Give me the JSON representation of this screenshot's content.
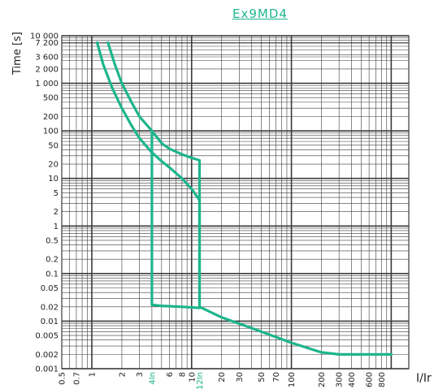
{
  "chart_data": {
    "type": "line",
    "title": "Ex9MD4",
    "xlabel": "I/Ir",
    "ylabel": "Time [s]",
    "xscale": "log",
    "yscale": "log",
    "xlim": [
      0.5,
      1500
    ],
    "ylim": [
      0.001,
      10000
    ],
    "grid": true,
    "colors": {
      "curve": "#1db58c",
      "grid": "#3a3a3a",
      "highlight_tick": "#1db58c"
    },
    "x_ticks": [
      {
        "v": 0.5,
        "label": "0.5",
        "hl": false
      },
      {
        "v": 0.7,
        "label": "0.7",
        "hl": false
      },
      {
        "v": 1,
        "label": "1",
        "hl": false
      },
      {
        "v": 2,
        "label": "2",
        "hl": false
      },
      {
        "v": 3,
        "label": "3",
        "hl": false
      },
      {
        "v": 4,
        "label": "4In",
        "hl": true
      },
      {
        "v": 6,
        "label": "6",
        "hl": false
      },
      {
        "v": 8,
        "label": "8",
        "hl": false
      },
      {
        "v": 10,
        "label": "10",
        "hl": false
      },
      {
        "v": 12,
        "label": "12In",
        "hl": true
      },
      {
        "v": 20,
        "label": "20",
        "hl": false
      },
      {
        "v": 30,
        "label": "30",
        "hl": false
      },
      {
        "v": 50,
        "label": "50",
        "hl": false
      },
      {
        "v": 70,
        "label": "70",
        "hl": false
      },
      {
        "v": 100,
        "label": "100",
        "hl": false
      },
      {
        "v": 200,
        "label": "200",
        "hl": false
      },
      {
        "v": 300,
        "label": "300",
        "hl": false
      },
      {
        "v": 400,
        "label": "400",
        "hl": false
      },
      {
        "v": 600,
        "label": "600",
        "hl": false
      },
      {
        "v": 800,
        "label": "800",
        "hl": false
      }
    ],
    "y_ticks": [
      {
        "v": 10000,
        "label": "10 000"
      },
      {
        "v": 7200,
        "label": "7 200"
      },
      {
        "v": 3600,
        "label": "3 600"
      },
      {
        "v": 2000,
        "label": "2 000"
      },
      {
        "v": 1000,
        "label": "1 000"
      },
      {
        "v": 500,
        "label": "500"
      },
      {
        "v": 200,
        "label": "200"
      },
      {
        "v": 100,
        "label": "100"
      },
      {
        "v": 50,
        "label": "50"
      },
      {
        "v": 20,
        "label": "20"
      },
      {
        "v": 10,
        "label": "10"
      },
      {
        "v": 5,
        "label": "5"
      },
      {
        "v": 2,
        "label": "2"
      },
      {
        "v": 1,
        "label": "1"
      },
      {
        "v": 0.5,
        "label": "0.5"
      },
      {
        "v": 0.2,
        "label": "0.2"
      },
      {
        "v": 0.1,
        "label": "0.1"
      },
      {
        "v": 0.05,
        "label": "0.05"
      },
      {
        "v": 0.02,
        "label": "0.02"
      },
      {
        "v": 0.01,
        "label": "0.01"
      },
      {
        "v": 0.005,
        "label": "0.005"
      },
      {
        "v": 0.002,
        "label": "0.002"
      },
      {
        "v": 0.001,
        "label": "0.001"
      }
    ],
    "series": [
      {
        "points": [
          [
            1.13,
            7200
          ],
          [
            1.3,
            2500
          ],
          [
            1.6,
            800
          ],
          [
            2.0,
            300
          ],
          [
            2.5,
            130
          ],
          [
            3.0,
            70
          ],
          [
            4.0,
            35
          ],
          [
            5.0,
            23
          ],
          [
            6.0,
            17
          ],
          [
            8.0,
            10
          ],
          [
            10.0,
            6
          ],
          [
            12.0,
            3.5
          ],
          [
            12.0,
            0.02
          ],
          [
            20,
            0.012
          ],
          [
            50,
            0.006
          ],
          [
            100,
            0.0035
          ],
          [
            200,
            0.0022
          ],
          [
            300,
            0.002
          ],
          [
            1000,
            0.002
          ]
        ]
      },
      {
        "points": [
          [
            1.45,
            7200
          ],
          [
            1.7,
            2500
          ],
          [
            2.0,
            1000
          ],
          [
            2.5,
            400
          ],
          [
            3.0,
            200
          ],
          [
            4.0,
            100
          ],
          [
            5.0,
            55
          ],
          [
            6.0,
            42
          ],
          [
            8.0,
            32
          ],
          [
            10.0,
            27
          ],
          [
            12.0,
            24
          ],
          [
            12.0,
            0.02
          ]
        ]
      },
      {
        "points": [
          [
            4.0,
            100
          ],
          [
            4.0,
            0.022
          ],
          [
            5.0,
            0.021
          ],
          [
            8.0,
            0.02
          ],
          [
            12.0,
            0.019
          ]
        ]
      }
    ]
  }
}
